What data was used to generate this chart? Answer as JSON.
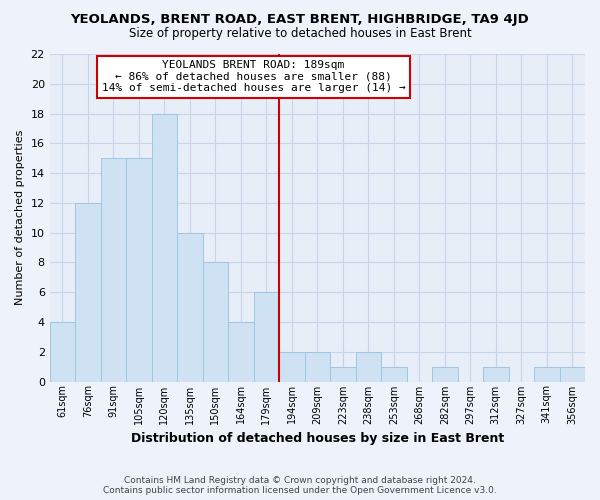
{
  "title": "YEOLANDS, BRENT ROAD, EAST BRENT, HIGHBRIDGE, TA9 4JD",
  "subtitle": "Size of property relative to detached houses in East Brent",
  "xlabel": "Distribution of detached houses by size in East Brent",
  "ylabel": "Number of detached properties",
  "bar_labels": [
    "61sqm",
    "76sqm",
    "91sqm",
    "105sqm",
    "120sqm",
    "135sqm",
    "150sqm",
    "164sqm",
    "179sqm",
    "194sqm",
    "209sqm",
    "223sqm",
    "238sqm",
    "253sqm",
    "268sqm",
    "282sqm",
    "297sqm",
    "312sqm",
    "327sqm",
    "341sqm",
    "356sqm"
  ],
  "bar_heights": [
    4,
    12,
    15,
    15,
    18,
    10,
    8,
    4,
    6,
    2,
    2,
    1,
    2,
    1,
    0,
    1,
    0,
    1,
    0,
    1,
    1
  ],
  "bar_color": "#cfe2f3",
  "bar_edge_color": "#9ec6e0",
  "red_line_index": 9,
  "ylim": [
    0,
    22
  ],
  "yticks": [
    0,
    2,
    4,
    6,
    8,
    10,
    12,
    14,
    16,
    18,
    20,
    22
  ],
  "annotation_title": "YEOLANDS BRENT ROAD: 189sqm",
  "annotation_line1": "← 86% of detached houses are smaller (88)",
  "annotation_line2": "14% of semi-detached houses are larger (14) →",
  "annotation_box_color": "#ffffff",
  "annotation_box_edge": "#cc0000",
  "footer_line1": "Contains HM Land Registry data © Crown copyright and database right 2024.",
  "footer_line2": "Contains public sector information licensed under the Open Government Licence v3.0.",
  "background_color": "#eef2fb",
  "grid_color": "#c8d4e8",
  "plot_bg_color": "#e8eef8"
}
